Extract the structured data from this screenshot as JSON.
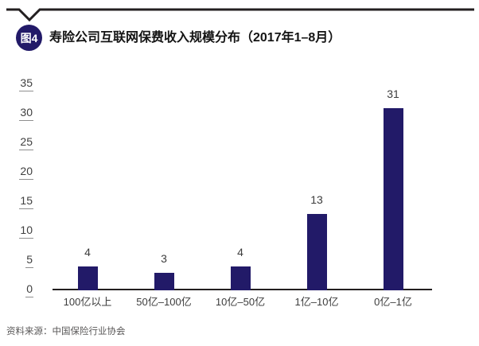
{
  "header": {
    "badge": "图4",
    "title": "寿险公司互联网保费收入规模分布（2017年1–8月）"
  },
  "chart_data": {
    "type": "bar",
    "title": "寿险公司互联网保费收入规模分布（2017年1–8月）",
    "categories": [
      "100亿以上",
      "50亿–100亿",
      "10亿–50亿",
      "1亿–10亿",
      "0亿–1亿"
    ],
    "values": [
      4,
      3,
      4,
      13,
      31
    ],
    "yticks": [
      0,
      5,
      10,
      15,
      20,
      25,
      30,
      35
    ],
    "ylim": [
      0,
      35
    ],
    "xlabel": "",
    "ylabel": "",
    "grid": false,
    "legend": false,
    "bar_color": "#221a68",
    "tick_underline": true
  },
  "footer": {
    "source": "资料来源：中国保险行业协会"
  },
  "colors": {
    "accent_navy": "#221a68",
    "rule_black": "#231f20",
    "label_text": "#3c3c3c",
    "source_text": "#595757"
  }
}
